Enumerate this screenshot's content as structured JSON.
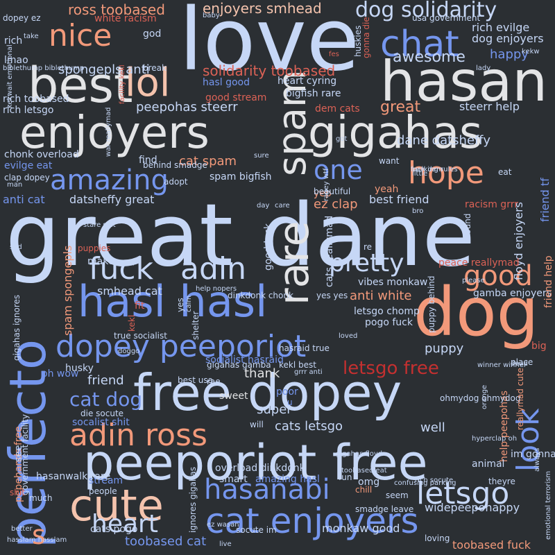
{
  "palette": {
    "background": "#2b2f33",
    "light_blue": "#c6d7f6",
    "pale": "#e3e4e6",
    "blue": "#7596ee",
    "deep_blue": "#4c6ee0",
    "salmon": "#f2997a",
    "peach": "#f4c3ad",
    "red": "#dc6256",
    "dark_red": "#c43030"
  },
  "words": [
    "love",
    "great dane",
    "enjoyers",
    "gigahas",
    "dog",
    "hasan",
    "best",
    "lol",
    "nice",
    "chat",
    "spam",
    "rare",
    "perfecto",
    "free dopey",
    "peeporiot free",
    "hasl hasl",
    "dopey peeporiot",
    "cute",
    "cat enjoyers",
    "hasanabi",
    "letsgo",
    "adin ross",
    "amazing",
    "one",
    "hope",
    "fuck",
    "adin",
    "pretty",
    "good",
    "look",
    "heart",
    "s",
    "cat dog",
    "letsgo free",
    "dog solidarity",
    "enjoyers smhead",
    "ross toobased",
    "solidarity toobased",
    "awesome",
    "happy",
    "dog enjoyers",
    "rich evilge",
    "spongepls anti",
    "peepohas steerr",
    "great",
    "steerr help",
    "dane datsheffy",
    "cat spam",
    "datsheffy great",
    "anti cat",
    "ez clap",
    "best friend",
    "floyd enjoyers",
    "friend tf",
    "smhead cat",
    "anti white",
    "letsgo chomp",
    "puppy",
    "friend",
    "thank",
    "super",
    "cats letsgo",
    "well",
    "help peepohas",
    "toobased cat",
    "monkaw good",
    "toobased fuck",
    "widepeepohappy",
    "stream",
    "smart",
    "heart cyring",
    "bigfish rare",
    "dem cats",
    "good stream",
    "hasl good",
    "white racism",
    "rich toobased",
    "rich letsgo",
    "lmao",
    "rich",
    "god",
    "chonk overload",
    "evilge eat",
    "find",
    "spam bigfish",
    "cats reallymad",
    "spam spongepls",
    "make",
    "pepehands free",
    "gigahas ignores",
    "ignores gigahas",
    "cats pogo",
    "racism grrr",
    "yeah",
    "yep",
    "good luck",
    "vibes monkaw",
    "peace reallymad",
    "gamba enjoyers",
    "pogo fuck",
    "fit",
    "socialist hasraid",
    "hasraid true",
    "gigahas gamba",
    "kekl best",
    "best usa",
    "sweet",
    "poor",
    "u",
    "friend help",
    "dopey ez",
    "take",
    "baby",
    "usa government",
    "kekw",
    "gonna die",
    "huskies",
    "break",
    "biblethump biblethump",
    "kekwait emotional",
    "facility kekl",
    "war reallymad",
    "behind smadge",
    "adopt",
    "want",
    "little",
    "parking rules",
    "fuck dem",
    "man",
    "clap dopey",
    "beautiful",
    "ragey wtf",
    "stare shit",
    "shelter",
    "puppies",
    "sad",
    "true socialist",
    "yes",
    "help nopers",
    "dinkdonk chonk",
    "husky",
    "doggo",
    "oh wow",
    "die socute",
    "socalist shit",
    "rae",
    "grrr anti",
    "will",
    "government facility",
    "hasanwalk rare",
    "much",
    "people",
    "shit",
    "hasslam hasslam",
    "better",
    "live",
    "ez wasan",
    "socute im",
    "overload dinkdonk",
    "amazing hasl",
    "omg",
    "seem",
    "smadge leave",
    "chill",
    "fun",
    "toobased eat",
    "animal",
    "gigahas floyd",
    "hyperclap oh",
    "im gonna",
    "rich socute",
    "theyre",
    "loving",
    "always",
    "emotional terrorism",
    "confusing parking",
    "winner winner",
    "dead",
    "ohmydog ohmydog",
    "orange",
    "reallymad cute",
    "place",
    "big",
    "puppy behind",
    "please",
    "sound",
    "bro",
    "eat",
    "care",
    "day",
    "fes",
    "lady",
    "loved",
    "got",
    "sure",
    "re",
    "calm",
    "yes yes",
    "kekl",
    "see"
  ]
}
